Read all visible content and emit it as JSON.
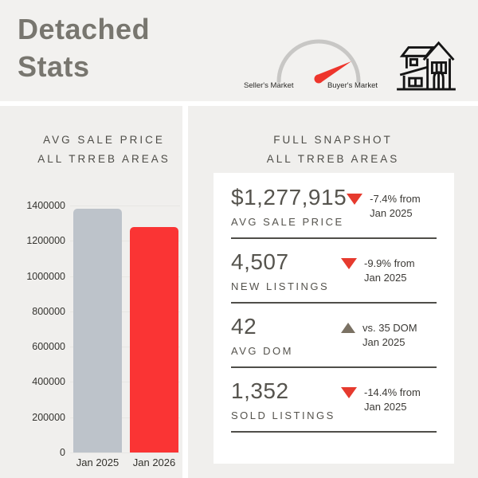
{
  "header": {
    "title_line1": "Detached",
    "title_line2": "Stats",
    "gauge": {
      "left_label": "Seller's Market",
      "right_label": "Buyer's Market",
      "arc_color": "#c8c7c5",
      "needle_color": "#ee352c"
    }
  },
  "left_panel": {
    "title_line1": "AVG SALE PRICE",
    "title_line2": "ALL TRREB AREAS"
  },
  "chart_data": {
    "type": "bar",
    "title": "AVG SALE PRICE ALL TRREB AREAS",
    "categories": [
      "Jan 2025",
      "Jan 2026"
    ],
    "values": [
      1380000,
      1277915
    ],
    "bar_colors": [
      "#bdc3ca",
      "#fa3434"
    ],
    "xlabel": "",
    "ylabel": "",
    "ylim": [
      0,
      1400000
    ],
    "ytick_step": 200000,
    "grid": "faint horizontal",
    "legend": "none"
  },
  "right_panel": {
    "title_line1": "FULL SNAPSHOT",
    "title_line2": "ALL TRREB AREAS",
    "stats": [
      {
        "value": "$1,277,915",
        "label": "AVG SALE PRICE",
        "direction": "down",
        "change_line1": "-7.4% from",
        "change_line2": "Jan 2025"
      },
      {
        "value": "4,507",
        "label": "NEW LISTINGS",
        "direction": "down",
        "change_line1": "-9.9% from",
        "change_line2": "Jan 2025"
      },
      {
        "value": "42",
        "label": "AVG DOM",
        "direction": "up",
        "change_line1": "vs. 35 DOM",
        "change_line2": "Jan 2025"
      },
      {
        "value": "1,352",
        "label": "SOLD LISTINGS",
        "direction": "down",
        "change_line1": "-14.4% from",
        "change_line2": "Jan 2025"
      }
    ]
  },
  "colors": {
    "header_bg": "#f2f1ef",
    "panel_bg": "#f0efed",
    "card_bg": "#ffffff",
    "title_text": "#78766f",
    "heading_text": "#4e4d48",
    "stat_text": "#56544e",
    "divider": "#4f4e49",
    "down_triangle": "#e63a2e",
    "up_triangle": "#7a7163",
    "house_icon": "#151515"
  }
}
